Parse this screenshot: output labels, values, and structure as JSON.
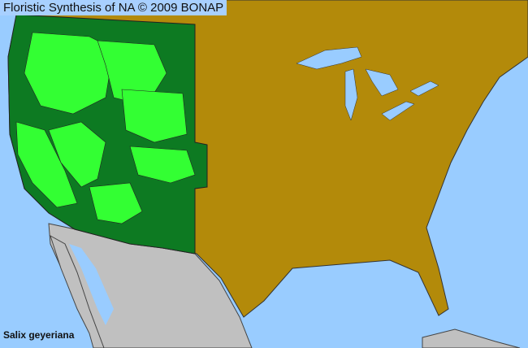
{
  "header": {
    "title": "Floristic Synthesis of NA © 2009 BONAP"
  },
  "species": {
    "name": "Salix geyeriana"
  },
  "legend_colors": {
    "ocean": "#99ccff",
    "absent_in_region": "#b38a0a",
    "present_in_state": "#0d7a22",
    "present_in_county": "#33ff33",
    "outside_range": "#c0c0c0",
    "boundaries": "#333333"
  }
}
